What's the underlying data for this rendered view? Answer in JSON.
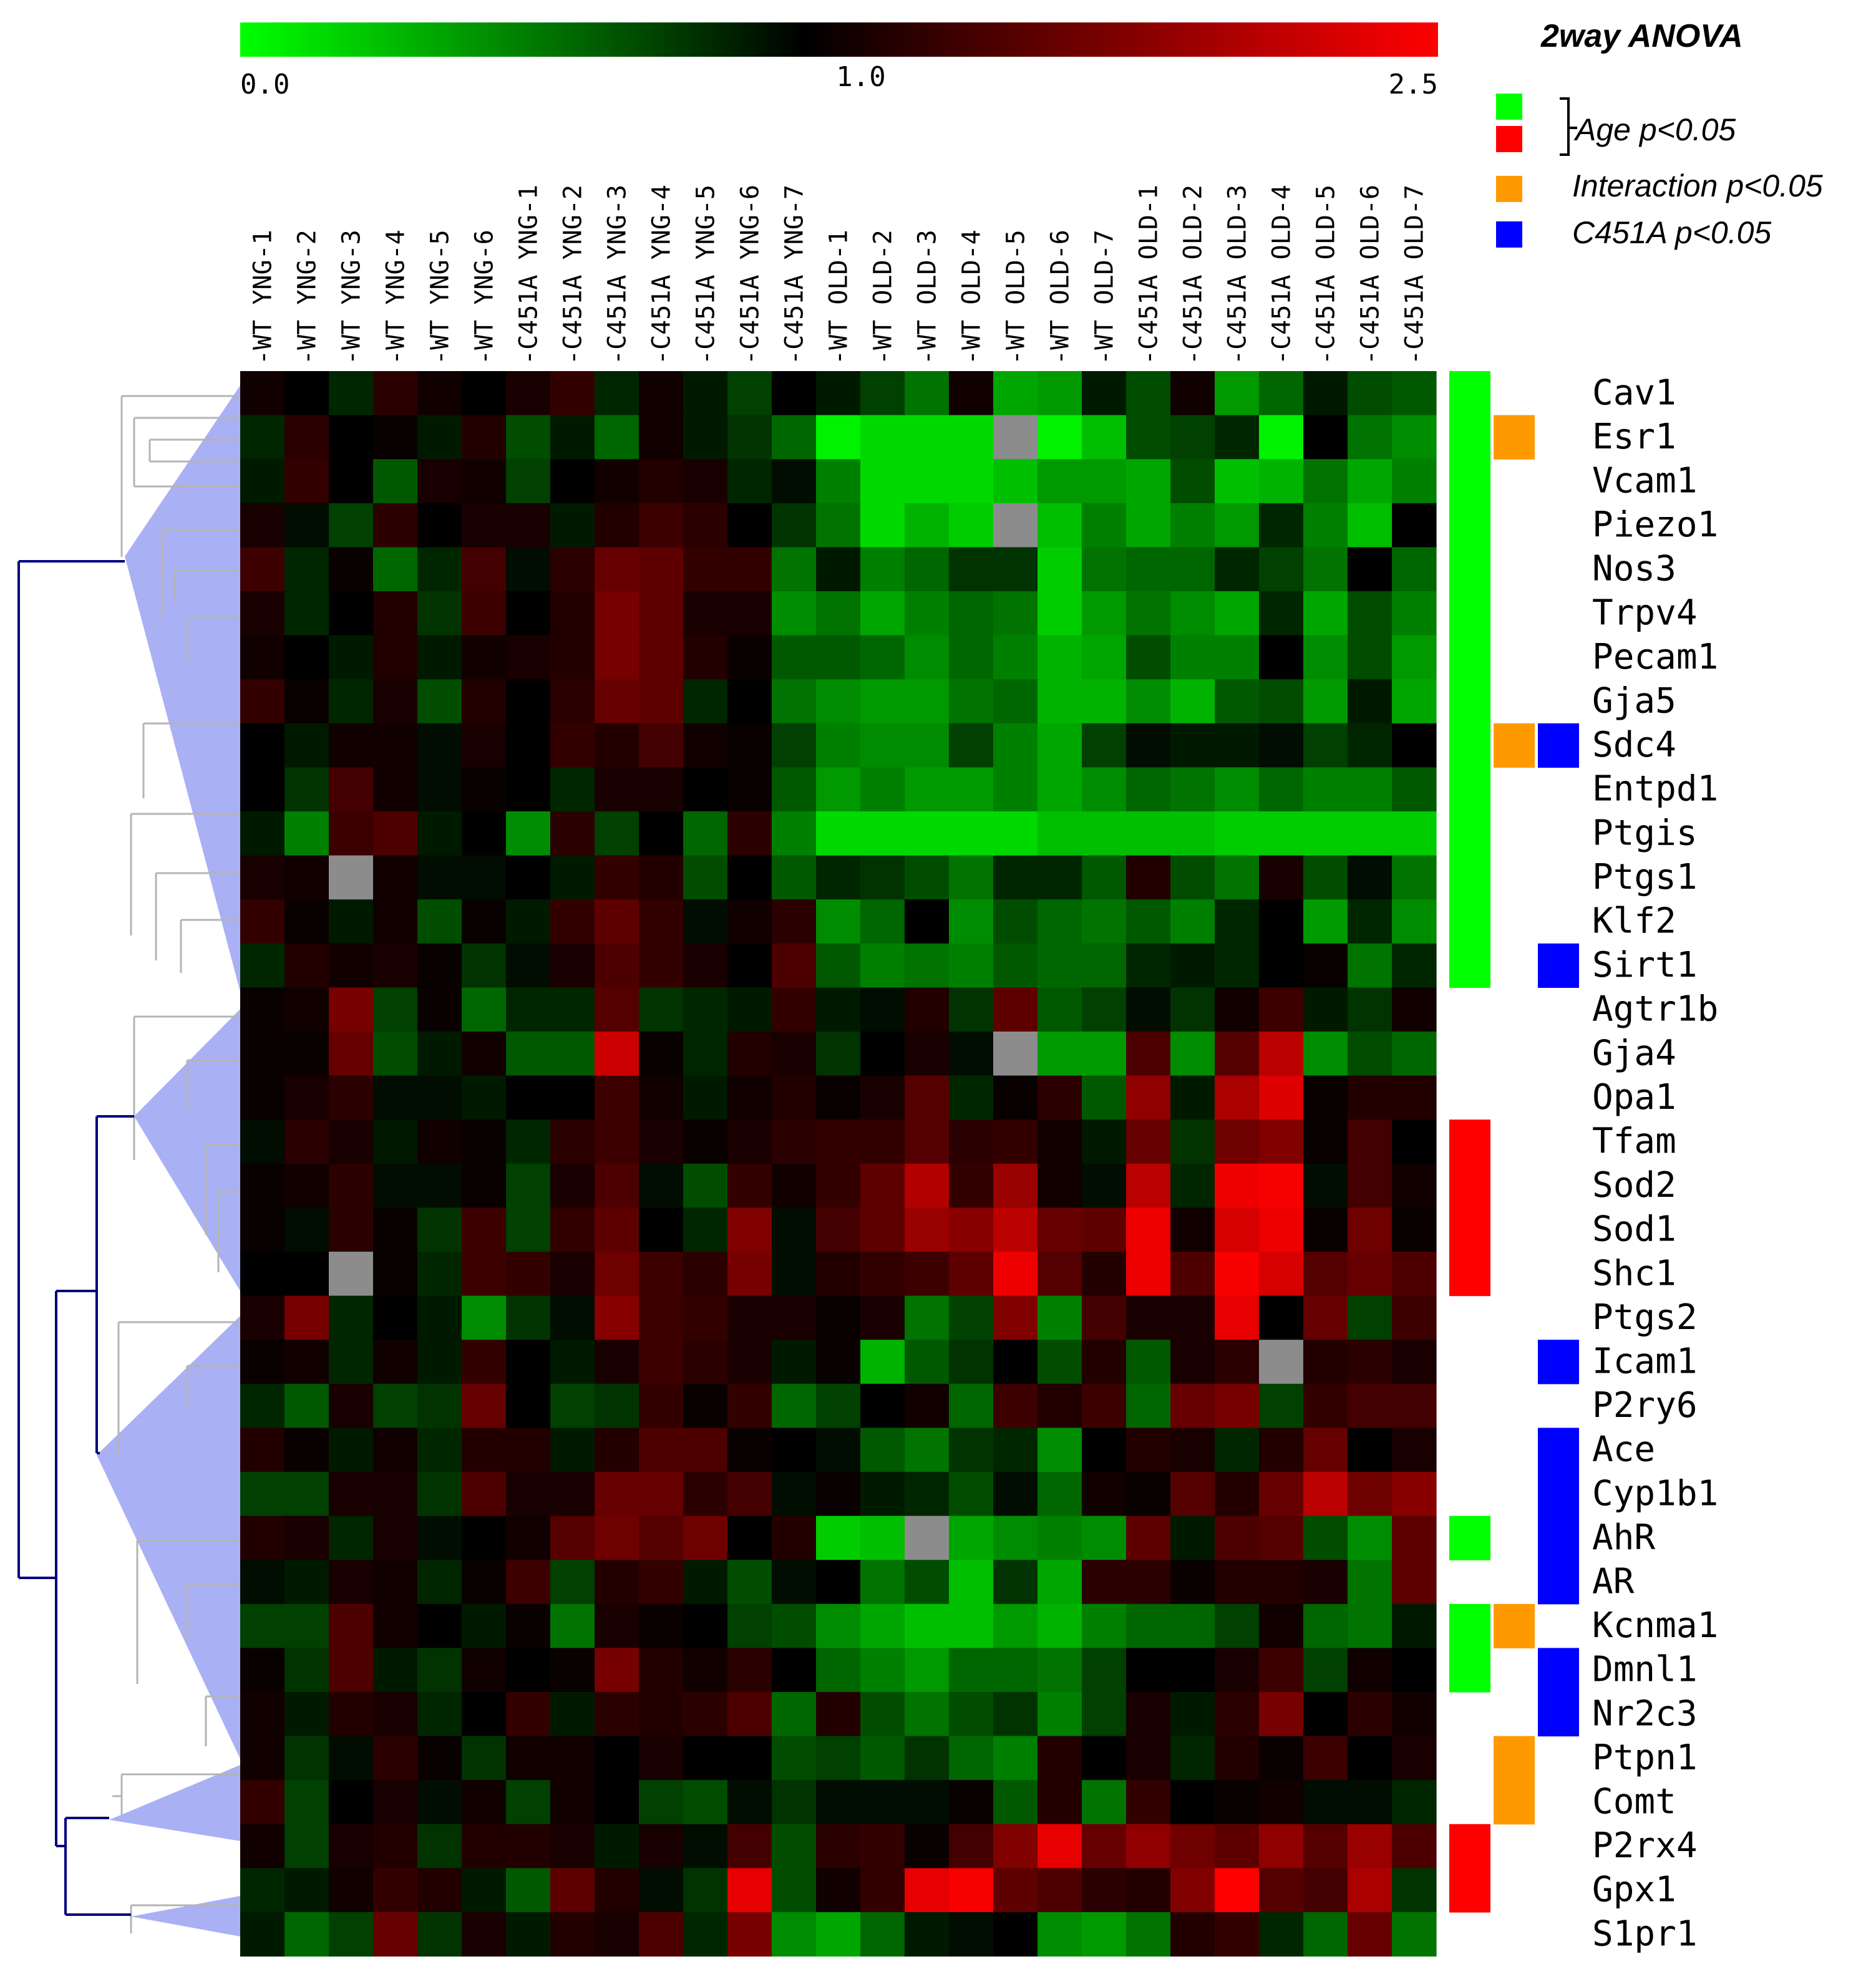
{
  "chart_data": {
    "type": "heatmap",
    "colorbar": {
      "min_label": "0.0",
      "mid_label": "1.0",
      "max_label": "2.5",
      "min": 0.0,
      "mid": 1.0,
      "max": 2.5,
      "colors": {
        "low": "#00ff00",
        "mid": "#000000",
        "high": "#ff0000",
        "missing": "#8c8c8c"
      }
    },
    "columns": [
      "-WT YNG-1",
      "-WT YNG-2",
      "-WT YNG-3",
      "-WT YNG-4",
      "-WT YNG-5",
      "-WT YNG-6",
      "-C451A YNG-1",
      "-C451A YNG-2",
      "-C451A YNG-3",
      "-C451A YNG-4",
      "-C451A YNG-5",
      "-C451A YNG-6",
      "-C451A YNG-7",
      "-WT OLD-1",
      "-WT OLD-2",
      "-WT OLD-3",
      "-WT OLD-4",
      "-WT OLD-5",
      "-WT OLD-6",
      "-WT OLD-7",
      "-C451A OLD-1",
      "-C451A OLD-2",
      "-C451A OLD-3",
      "-C451A OLD-4",
      "-C451A OLD-5",
      "-C451A OLD-6",
      "-C451A OLD-7"
    ],
    "rows": [
      "Cav1",
      "Esr1",
      "Vcam1",
      "Piezo1",
      "Nos3",
      "Trpv4",
      "Pecam1",
      "Gja5",
      "Sdc4",
      "Entpd1",
      "Ptgis",
      "Ptgs1",
      "Klf2",
      "Sirt1",
      "Agtr1b",
      "Gja4",
      "Opa1",
      "Tfam",
      "Sod2",
      "Sod1",
      "Shc1",
      "Ptgs2",
      "Icam1",
      "P2ry6",
      "Ace",
      "Cyp1b1",
      "AhR",
      "AR",
      "Kcnma1",
      "Dmnl1",
      "Nr2c3",
      "Ptpn1",
      "Comt",
      "P2rx4",
      "Gpx1",
      "S1pr1"
    ],
    "values": [
      [
        1.1,
        1.0,
        0.85,
        1.25,
        1.1,
        1.0,
        1.15,
        1.3,
        0.85,
        1.1,
        0.9,
        0.75,
        1.0,
        0.9,
        0.75,
        0.55,
        1.1,
        0.35,
        0.4,
        0.9,
        0.7,
        1.1,
        0.4,
        0.6,
        0.9,
        0.7,
        0.65
      ],
      [
        0.85,
        1.25,
        1.0,
        1.05,
        0.9,
        1.2,
        0.7,
        0.9,
        0.6,
        1.1,
        0.9,
        0.8,
        0.6,
        0.05,
        0.15,
        0.15,
        0.15,
        null,
        0.05,
        0.25,
        0.7,
        0.75,
        0.85,
        0.05,
        1.0,
        0.55,
        0.45
      ],
      [
        0.9,
        1.3,
        1.0,
        0.65,
        1.15,
        1.1,
        0.75,
        1.0,
        1.1,
        1.2,
        1.15,
        0.85,
        0.95,
        0.5,
        0.15,
        0.15,
        0.15,
        0.25,
        0.4,
        0.4,
        0.35,
        0.7,
        0.25,
        0.3,
        0.55,
        0.35,
        0.5
      ],
      [
        1.15,
        0.95,
        0.75,
        1.25,
        1.0,
        1.15,
        1.15,
        0.9,
        1.2,
        1.35,
        1.25,
        1.0,
        0.8,
        0.55,
        0.15,
        0.3,
        0.2,
        null,
        0.25,
        0.5,
        0.35,
        0.5,
        0.4,
        0.85,
        0.5,
        0.25,
        1.0
      ],
      [
        1.35,
        0.85,
        1.05,
        0.6,
        0.85,
        1.4,
        0.95,
        1.25,
        1.6,
        1.55,
        1.3,
        1.3,
        0.55,
        0.9,
        0.5,
        0.6,
        0.8,
        0.8,
        0.2,
        0.55,
        0.6,
        0.6,
        0.85,
        0.75,
        0.55,
        1.0,
        0.6
      ],
      [
        1.15,
        0.85,
        1.0,
        1.2,
        0.8,
        1.35,
        1.0,
        1.2,
        1.7,
        1.55,
        1.15,
        1.15,
        0.45,
        0.55,
        0.35,
        0.5,
        0.6,
        0.55,
        0.2,
        0.4,
        0.55,
        0.45,
        0.35,
        0.85,
        0.35,
        0.7,
        0.5
      ],
      [
        1.1,
        1.0,
        0.9,
        1.2,
        0.9,
        1.1,
        1.15,
        1.2,
        1.7,
        1.55,
        1.2,
        1.05,
        0.65,
        0.65,
        0.6,
        0.45,
        0.6,
        0.5,
        0.3,
        0.35,
        0.7,
        0.5,
        0.5,
        1.0,
        0.45,
        0.7,
        0.4
      ],
      [
        1.3,
        1.05,
        0.85,
        1.15,
        0.7,
        1.2,
        1.0,
        1.25,
        1.6,
        1.55,
        0.85,
        1.0,
        0.55,
        0.45,
        0.4,
        0.4,
        0.55,
        0.6,
        0.3,
        0.3,
        0.45,
        0.3,
        0.65,
        0.7,
        0.4,
        0.9,
        0.35
      ],
      [
        1.0,
        0.9,
        1.1,
        1.1,
        0.95,
        1.15,
        1.0,
        1.3,
        1.2,
        1.4,
        1.1,
        1.05,
        0.75,
        0.5,
        0.45,
        0.45,
        0.75,
        0.5,
        0.35,
        0.75,
        0.95,
        0.9,
        0.9,
        0.95,
        0.75,
        0.85,
        1.0
      ],
      [
        1.0,
        0.8,
        1.4,
        1.1,
        0.95,
        1.05,
        1.0,
        0.85,
        1.15,
        1.15,
        1.0,
        1.05,
        0.65,
        0.4,
        0.5,
        0.4,
        0.4,
        0.5,
        0.35,
        0.45,
        0.6,
        0.55,
        0.45,
        0.6,
        0.5,
        0.5,
        0.65
      ],
      [
        0.9,
        0.5,
        1.35,
        1.45,
        0.9,
        1.0,
        0.45,
        1.25,
        0.75,
        1.0,
        0.6,
        1.25,
        0.5,
        0.15,
        0.15,
        0.15,
        0.15,
        0.15,
        0.25,
        0.25,
        0.25,
        0.25,
        0.2,
        0.2,
        0.2,
        0.2,
        0.2
      ],
      [
        1.15,
        1.1,
        null,
        1.1,
        0.95,
        0.95,
        1.0,
        0.9,
        1.3,
        1.2,
        0.7,
        1.0,
        0.65,
        0.85,
        0.8,
        0.7,
        0.55,
        0.85,
        0.85,
        0.65,
        1.2,
        0.7,
        0.55,
        1.15,
        0.7,
        0.95,
        0.55
      ],
      [
        1.3,
        1.05,
        0.9,
        1.1,
        0.7,
        1.05,
        0.9,
        1.3,
        1.55,
        1.3,
        0.95,
        1.1,
        1.25,
        0.45,
        0.6,
        1.0,
        0.45,
        0.7,
        0.6,
        0.55,
        0.65,
        0.5,
        0.85,
        1.0,
        0.4,
        0.85,
        0.45
      ],
      [
        0.85,
        1.2,
        1.1,
        1.15,
        1.05,
        0.8,
        0.95,
        1.15,
        1.45,
        1.3,
        1.15,
        1.0,
        1.45,
        0.65,
        0.5,
        0.55,
        0.5,
        0.65,
        0.6,
        0.6,
        0.85,
        0.9,
        0.85,
        1.0,
        1.05,
        0.55,
        0.85
      ],
      [
        1.05,
        1.1,
        1.7,
        0.75,
        1.05,
        0.6,
        0.85,
        0.85,
        1.5,
        0.8,
        0.85,
        0.9,
        1.3,
        0.9,
        0.95,
        1.2,
        0.8,
        1.55,
        0.65,
        0.75,
        0.95,
        0.8,
        1.1,
        1.35,
        0.9,
        0.8,
        1.1
      ],
      [
        1.05,
        1.05,
        1.6,
        0.7,
        0.9,
        1.1,
        0.65,
        0.65,
        2.2,
        1.05,
        0.85,
        1.2,
        1.15,
        0.8,
        1.0,
        1.15,
        0.95,
        null,
        0.4,
        0.4,
        1.45,
        0.45,
        1.5,
        2.1,
        0.45,
        0.7,
        0.6
      ],
      [
        1.05,
        1.15,
        1.25,
        0.95,
        0.95,
        0.9,
        1.0,
        1.0,
        1.35,
        1.1,
        0.9,
        1.1,
        1.2,
        1.05,
        1.15,
        1.5,
        0.85,
        1.05,
        1.25,
        0.65,
        1.85,
        0.9,
        2.0,
        2.3,
        1.05,
        1.2,
        1.2
      ],
      [
        0.95,
        1.25,
        1.15,
        0.9,
        1.1,
        1.05,
        0.85,
        1.25,
        1.35,
        1.15,
        1.05,
        1.15,
        1.25,
        1.3,
        1.3,
        1.5,
        1.25,
        1.3,
        1.1,
        0.9,
        1.6,
        0.8,
        1.65,
        1.75,
        1.05,
        1.4,
        1.0
      ],
      [
        1.05,
        1.1,
        1.25,
        0.95,
        0.95,
        1.05,
        0.75,
        1.15,
        1.45,
        0.95,
        0.7,
        1.3,
        1.1,
        1.3,
        1.55,
        2.05,
        1.3,
        1.9,
        1.1,
        0.95,
        2.1,
        0.85,
        2.4,
        2.45,
        0.95,
        1.4,
        1.1
      ],
      [
        1.05,
        0.95,
        1.25,
        1.05,
        0.8,
        1.35,
        0.75,
        1.3,
        1.55,
        1.0,
        0.85,
        1.75,
        0.95,
        1.4,
        1.55,
        1.9,
        1.8,
        2.1,
        1.6,
        1.55,
        2.4,
        1.1,
        2.25,
        2.4,
        1.05,
        1.65,
        1.05
      ],
      [
        1.0,
        1.0,
        null,
        1.05,
        0.85,
        1.35,
        1.3,
        1.15,
        1.65,
        1.35,
        1.25,
        1.7,
        0.95,
        1.2,
        1.3,
        1.35,
        1.55,
        2.4,
        1.5,
        1.2,
        2.4,
        1.45,
        2.45,
        2.25,
        1.5,
        1.6,
        1.45
      ],
      [
        1.15,
        1.7,
        0.85,
        1.0,
        0.9,
        0.45,
        0.8,
        0.95,
        1.8,
        1.35,
        1.3,
        1.15,
        1.15,
        1.05,
        1.15,
        0.55,
        0.75,
        1.75,
        0.5,
        1.4,
        1.15,
        1.15,
        2.35,
        1.0,
        1.6,
        0.75,
        1.35
      ],
      [
        1.05,
        1.1,
        0.85,
        1.1,
        0.9,
        1.3,
        1.0,
        0.9,
        1.15,
        1.35,
        1.25,
        1.15,
        0.9,
        1.05,
        0.3,
        0.65,
        0.8,
        1.0,
        0.7,
        1.2,
        0.65,
        1.15,
        1.25,
        null,
        1.2,
        1.25,
        1.15
      ],
      [
        0.85,
        0.65,
        1.15,
        0.75,
        0.8,
        1.6,
        1.0,
        0.75,
        0.8,
        1.3,
        1.05,
        1.3,
        0.6,
        0.75,
        1.0,
        1.1,
        0.6,
        1.35,
        1.2,
        1.35,
        0.6,
        1.6,
        1.7,
        0.75,
        1.3,
        1.4,
        1.4
      ],
      [
        1.2,
        1.05,
        0.9,
        1.1,
        0.85,
        1.2,
        1.2,
        0.9,
        1.2,
        1.45,
        1.45,
        1.05,
        1.0,
        0.95,
        0.65,
        0.55,
        0.8,
        0.85,
        0.45,
        1.0,
        1.2,
        1.15,
        0.85,
        1.2,
        1.6,
        1.0,
        1.15
      ],
      [
        0.75,
        0.75,
        1.15,
        1.15,
        0.8,
        1.45,
        1.15,
        1.15,
        1.6,
        1.6,
        1.25,
        1.4,
        0.95,
        1.05,
        0.9,
        0.85,
        0.7,
        0.95,
        0.6,
        1.1,
        1.05,
        1.5,
        1.2,
        1.6,
        2.1,
        1.65,
        1.8
      ],
      [
        1.2,
        1.15,
        0.85,
        1.15,
        0.95,
        1.0,
        1.1,
        1.5,
        1.65,
        1.5,
        1.65,
        1.0,
        1.2,
        0.2,
        0.25,
        null,
        0.35,
        0.45,
        0.5,
        0.45,
        1.55,
        0.9,
        1.45,
        1.5,
        0.7,
        0.45,
        1.55
      ],
      [
        0.95,
        0.9,
        1.15,
        1.1,
        0.85,
        1.05,
        1.35,
        0.75,
        1.2,
        1.3,
        0.9,
        0.7,
        0.95,
        1.0,
        0.55,
        0.7,
        0.25,
        0.8,
        0.35,
        1.25,
        1.25,
        1.05,
        1.2,
        1.2,
        1.15,
        0.55,
        1.55
      ],
      [
        0.75,
        0.75,
        1.45,
        1.1,
        1.0,
        0.9,
        1.05,
        0.55,
        1.15,
        1.05,
        1.0,
        0.75,
        0.7,
        0.45,
        0.35,
        0.25,
        0.25,
        0.4,
        0.3,
        0.5,
        0.6,
        0.6,
        0.75,
        1.1,
        0.6,
        0.55,
        0.9
      ],
      [
        1.05,
        0.8,
        1.45,
        0.9,
        0.8,
        1.1,
        1.0,
        1.05,
        1.7,
        1.2,
        1.1,
        1.25,
        1.0,
        0.6,
        0.5,
        0.4,
        0.6,
        0.6,
        0.55,
        0.75,
        1.0,
        1.0,
        1.15,
        1.35,
        0.75,
        1.1,
        1.0
      ],
      [
        1.1,
        0.9,
        1.2,
        1.15,
        0.85,
        1.0,
        1.3,
        0.9,
        1.25,
        1.2,
        1.25,
        1.45,
        0.6,
        1.2,
        0.7,
        0.55,
        0.7,
        0.8,
        0.5,
        0.75,
        1.15,
        0.9,
        1.25,
        1.7,
        1.0,
        1.25,
        1.1
      ],
      [
        1.1,
        0.8,
        0.95,
        1.25,
        1.05,
        0.8,
        1.1,
        1.1,
        1.0,
        1.15,
        1.0,
        1.0,
        0.7,
        0.75,
        0.65,
        0.8,
        0.6,
        0.5,
        1.2,
        1.0,
        1.15,
        0.85,
        1.2,
        1.05,
        1.35,
        1.0,
        1.15
      ],
      [
        1.3,
        0.75,
        1.0,
        1.15,
        0.95,
        1.1,
        0.75,
        1.1,
        1.0,
        0.75,
        0.7,
        0.95,
        0.8,
        0.95,
        0.95,
        0.95,
        1.05,
        0.65,
        1.2,
        0.55,
        1.3,
        1.0,
        1.05,
        1.1,
        0.95,
        0.95,
        0.85
      ],
      [
        1.1,
        0.75,
        1.15,
        1.2,
        0.8,
        1.2,
        1.2,
        1.15,
        0.9,
        1.15,
        0.95,
        1.4,
        0.7,
        1.25,
        1.3,
        1.05,
        1.4,
        1.75,
        2.35,
        1.6,
        1.85,
        1.65,
        1.55,
        1.85,
        1.5,
        1.9,
        1.45
      ],
      [
        0.85,
        0.9,
        1.1,
        1.3,
        1.2,
        0.9,
        0.65,
        1.55,
        1.2,
        0.95,
        0.8,
        2.35,
        0.7,
        1.1,
        1.3,
        2.35,
        2.45,
        1.55,
        1.45,
        1.25,
        1.2,
        1.75,
        2.5,
        1.5,
        1.4,
        2.0,
        0.8
      ],
      [
        0.9,
        0.6,
        0.75,
        1.6,
        0.8,
        1.15,
        0.9,
        1.2,
        1.15,
        1.45,
        0.85,
        1.7,
        0.45,
        0.35,
        0.6,
        0.9,
        0.95,
        1.0,
        0.45,
        0.4,
        0.55,
        1.2,
        1.3,
        0.85,
        0.6,
        1.6,
        0.55
      ]
    ],
    "anova": {
      "title": "2way ANOVA",
      "legend": [
        {
          "label": "Age p<0.05",
          "colors": [
            "#00ff00",
            "#ff0000"
          ]
        },
        {
          "label": "Interaction p<0.05",
          "color": "#ff9900"
        },
        {
          "label": "C451A p<0.05",
          "color": "#0000ff"
        }
      ],
      "age_up": [
        "Cav1",
        "Esr1",
        "Vcam1",
        "Piezo1",
        "Nos3",
        "Trpv4",
        "Pecam1",
        "Gja5",
        "Sdc4",
        "Entpd1",
        "Ptgis",
        "Ptgs1",
        "Klf2",
        "Sirt1",
        "AhR",
        "Kcnma1",
        "Dmnl1"
      ],
      "age_down": [
        "Tfam",
        "Sod2",
        "Sod1",
        "Shc1",
        "P2rx4",
        "Gpx1"
      ],
      "interaction": [
        "Esr1",
        "Sdc4",
        "Kcnma1",
        "Ptpn1",
        "Comt"
      ],
      "c451a": [
        "Sdc4",
        "Sirt1",
        "Icam1",
        "Ace",
        "Cyp1b1",
        "AhR",
        "AR",
        "Dmnl1",
        "Nr2c3"
      ]
    },
    "dendrogram": {
      "line_color": "#000080",
      "light_color": "#b4b4b4",
      "cluster_fill": "#aab0f4"
    }
  }
}
